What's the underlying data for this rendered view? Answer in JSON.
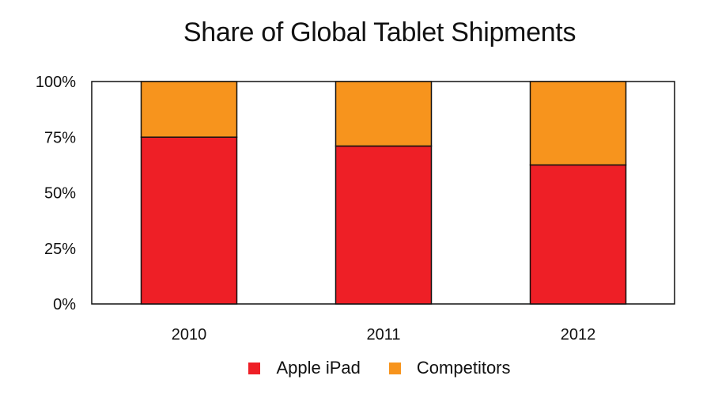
{
  "chart_data": {
    "type": "bar",
    "stacked": true,
    "title": "Share of Global Tablet Shipments",
    "xlabel": "",
    "ylabel": "",
    "categories": [
      "2010",
      "2011",
      "2012"
    ],
    "series": [
      {
        "name": "Apple iPad",
        "color": "#ee1f26",
        "values": [
          75,
          71,
          62.5
        ]
      },
      {
        "name": "Competitors",
        "color": "#f7941d",
        "values": [
          25,
          29,
          37.5
        ]
      }
    ],
    "ylim": [
      0,
      100
    ],
    "yticks": [
      "0%",
      "25%",
      "50%",
      "75%",
      "100%"
    ],
    "grid": false,
    "legend_position": "bottom"
  }
}
